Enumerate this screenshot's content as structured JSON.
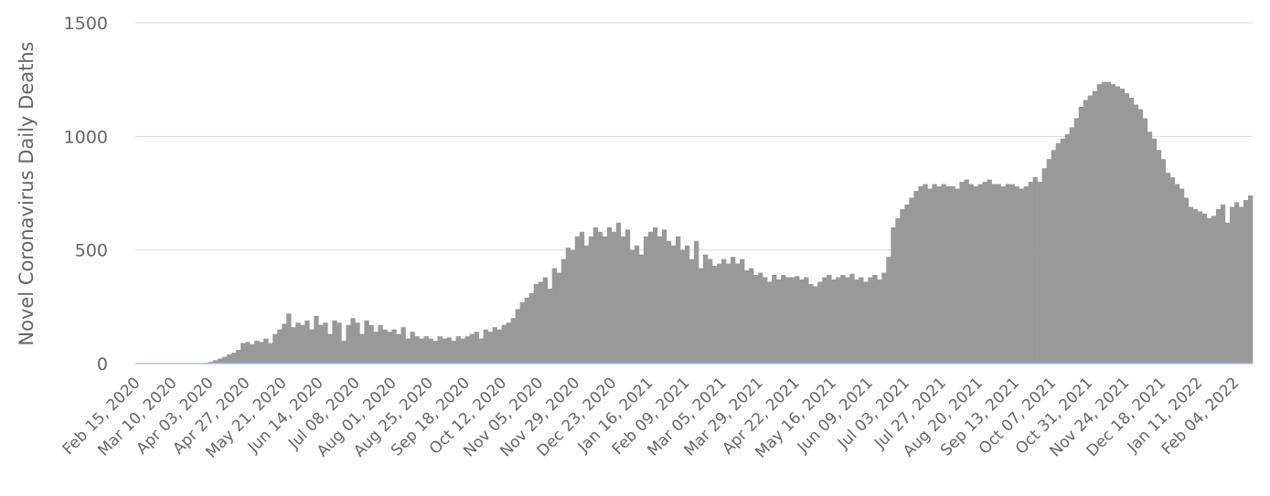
{
  "chart_data": {
    "type": "bar",
    "y_label": "Novel Coronavirus Daily Deaths",
    "color": "#999999",
    "grid": true,
    "ylim": [
      0,
      1500
    ],
    "yticks": [
      0,
      500,
      1000,
      1500
    ],
    "categories": [
      "Feb 15, 2020",
      null,
      null,
      null,
      null,
      null,
      null,
      null,
      "Mar 10, 2020",
      null,
      null,
      null,
      null,
      null,
      null,
      null,
      "Apr 03, 2020",
      null,
      null,
      null,
      null,
      null,
      null,
      null,
      "Apr 27, 2020",
      null,
      null,
      null,
      null,
      null,
      null,
      null,
      "May 21, 2020",
      null,
      null,
      null,
      null,
      null,
      null,
      null,
      "Jun 14, 2020",
      null,
      null,
      null,
      null,
      null,
      null,
      null,
      "Jul 08, 2020",
      null,
      null,
      null,
      null,
      null,
      null,
      null,
      "Aug 01, 2020",
      null,
      null,
      null,
      null,
      null,
      null,
      null,
      "Aug 25, 2020",
      null,
      null,
      null,
      null,
      null,
      null,
      null,
      "Sep 18, 2020",
      null,
      null,
      null,
      null,
      null,
      null,
      null,
      "Oct 12, 2020",
      null,
      null,
      null,
      null,
      null,
      null,
      null,
      "Nov 05, 2020",
      null,
      null,
      null,
      null,
      null,
      null,
      null,
      "Nov 29, 2020",
      null,
      null,
      null,
      null,
      null,
      null,
      null,
      "Dec 23, 2020",
      null,
      null,
      null,
      null,
      null,
      null,
      null,
      "Jan 16, 2021",
      null,
      null,
      null,
      null,
      null,
      null,
      null,
      "Feb 09, 2021",
      null,
      null,
      null,
      null,
      null,
      null,
      null,
      "Mar 05, 2021",
      null,
      null,
      null,
      null,
      null,
      null,
      null,
      "Mar 29, 2021",
      null,
      null,
      null,
      null,
      null,
      null,
      null,
      "Apr 22, 2021",
      null,
      null,
      null,
      null,
      null,
      null,
      null,
      "May 16, 2021",
      null,
      null,
      null,
      null,
      null,
      null,
      null,
      "Jun 09, 2021",
      null,
      null,
      null,
      null,
      null,
      null,
      null,
      "Jul 03, 2021",
      null,
      null,
      null,
      null,
      null,
      null,
      null,
      "Jul 27, 2021",
      null,
      null,
      null,
      null,
      null,
      null,
      null,
      "Aug 20, 2021",
      null,
      null,
      null,
      null,
      null,
      null,
      null,
      "Sep 13, 2021",
      null,
      null,
      null,
      null,
      null,
      null,
      null,
      "Oct 07, 2021",
      null,
      null,
      null,
      null,
      null,
      null,
      null,
      "Oct 31, 2021",
      null,
      null,
      null,
      null,
      null,
      null,
      null,
      "Nov 24, 2021",
      null,
      null,
      null,
      null,
      null,
      null,
      null,
      "Dec 18, 2021",
      null,
      null,
      null,
      null,
      null,
      null,
      null,
      "Jan 11, 2022",
      null,
      null,
      null,
      null,
      null,
      null,
      null,
      "Feb 04, 2022",
      null,
      null,
      null
    ],
    "values": [
      0,
      0,
      0,
      0,
      0,
      0,
      0,
      0,
      0,
      0,
      0,
      0,
      0,
      1,
      2,
      4,
      8,
      15,
      22,
      30,
      40,
      48,
      60,
      90,
      95,
      85,
      100,
      95,
      110,
      90,
      130,
      150,
      175,
      220,
      160,
      180,
      170,
      190,
      150,
      210,
      170,
      180,
      130,
      190,
      180,
      100,
      170,
      200,
      180,
      130,
      190,
      170,
      140,
      170,
      150,
      140,
      150,
      130,
      160,
      110,
      140,
      120,
      110,
      120,
      110,
      100,
      120,
      110,
      115,
      100,
      120,
      110,
      120,
      130,
      140,
      110,
      150,
      140,
      160,
      150,
      170,
      180,
      200,
      240,
      270,
      290,
      310,
      350,
      360,
      380,
      330,
      420,
      400,
      460,
      510,
      500,
      560,
      580,
      520,
      560,
      600,
      580,
      560,
      600,
      580,
      620,
      560,
      590,
      500,
      520,
      480,
      560,
      580,
      600,
      560,
      590,
      540,
      520,
      560,
      500,
      520,
      460,
      540,
      420,
      480,
      460,
      430,
      440,
      460,
      440,
      470,
      440,
      460,
      410,
      420,
      390,
      400,
      380,
      360,
      390,
      370,
      390,
      380,
      380,
      385,
      370,
      380,
      350,
      340,
      360,
      380,
      390,
      370,
      380,
      390,
      380,
      395,
      370,
      380,
      360,
      380,
      390,
      370,
      400,
      470,
      600,
      640,
      680,
      700,
      730,
      760,
      780,
      790,
      770,
      790,
      780,
      790,
      780,
      780,
      770,
      800,
      810,
      790,
      780,
      790,
      800,
      810,
      790,
      790,
      780,
      790,
      790,
      780,
      770,
      780,
      800,
      820,
      800,
      860,
      900,
      940,
      970,
      990,
      1010,
      1040,
      1080,
      1130,
      1160,
      1180,
      1200,
      1230,
      1240,
      1240,
      1230,
      1220,
      1210,
      1190,
      1170,
      1140,
      1120,
      1080,
      1020,
      990,
      940,
      900,
      840,
      820,
      790,
      770,
      730,
      690,
      680,
      670,
      660,
      640,
      650,
      680,
      700,
      620,
      690,
      710,
      690,
      720,
      740
    ]
  }
}
